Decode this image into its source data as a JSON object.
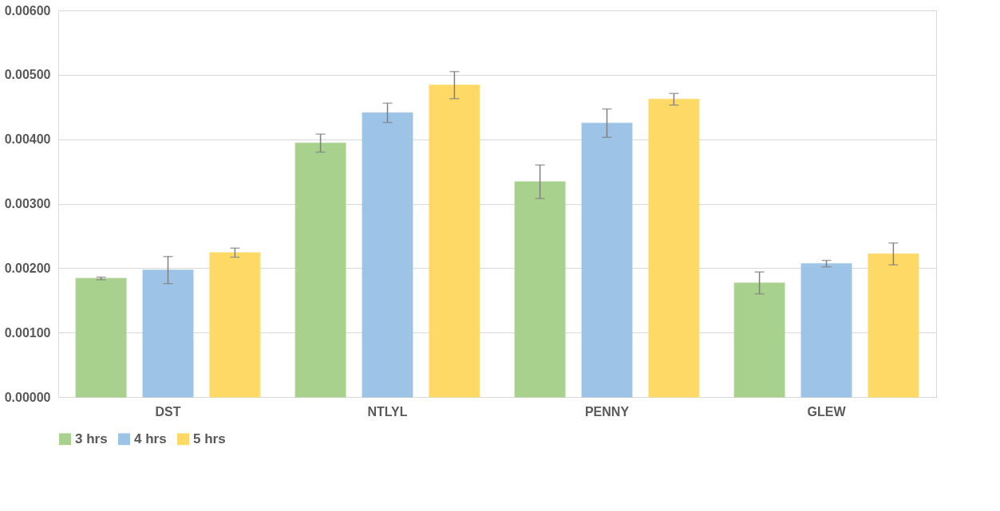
{
  "chart_data": {
    "type": "bar",
    "categories": [
      "DST",
      "NTLYL",
      "PENNY",
      "GLEW"
    ],
    "series": [
      {
        "name": "3 hrs",
        "color": "#a9d18e",
        "values": [
          0.00184,
          0.00394,
          0.00334,
          0.00177
        ],
        "errors": [
          2e-05,
          0.00014,
          0.00026,
          0.00017
        ]
      },
      {
        "name": "4 hrs",
        "color": "#9dc3e6",
        "values": [
          0.00197,
          0.00441,
          0.00425,
          0.00207
        ],
        "errors": [
          0.00021,
          0.00015,
          0.00022,
          5e-05
        ]
      },
      {
        "name": "5 hrs",
        "color": "#ffd966",
        "values": [
          0.00224,
          0.00484,
          0.00462,
          0.00222
        ],
        "errors": [
          7e-05,
          0.00021,
          9e-05,
          0.00017
        ]
      }
    ],
    "ylim": [
      0,
      0.006
    ],
    "yticks": [
      {
        "value": 0,
        "label": "0.00000"
      },
      {
        "value": 0.001,
        "label": "0.00100"
      },
      {
        "value": 0.002,
        "label": "0.00200"
      },
      {
        "value": 0.003,
        "label": "0.00300"
      },
      {
        "value": 0.004,
        "label": "0.00400"
      },
      {
        "value": 0.005,
        "label": "0.00500"
      },
      {
        "value": 0.006,
        "label": "0.00600"
      }
    ],
    "grid": "y",
    "legend": "bottom"
  }
}
